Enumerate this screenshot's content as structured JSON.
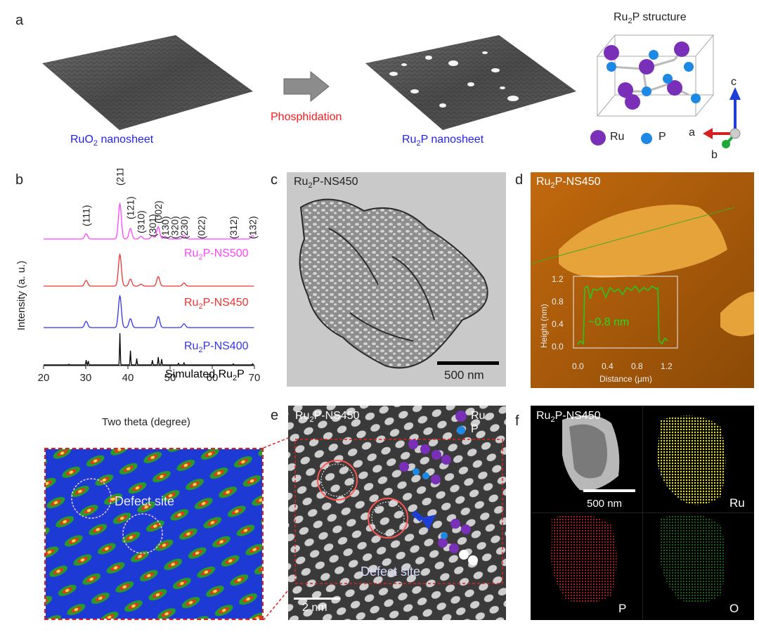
{
  "panels": {
    "a": {
      "letter": "a",
      "left_caption_main": "RuO",
      "left_caption_sub": "2",
      "left_caption_rest": " nanosheet",
      "arrow_label": "Phosphidation",
      "right_caption_main": "Ru",
      "right_caption_sub": "2",
      "right_caption_rest": "P nanosheet",
      "structure_title_main": "Ru",
      "structure_title_sub": "2",
      "structure_title_rest": "P structure",
      "legend_ru": "Ru",
      "legend_p": "P",
      "axis_a": "a",
      "axis_b": "b",
      "axis_c": "c"
    },
    "b": {
      "letter": "b",
      "xlabel": "Two theta (degree)",
      "ylabel": "Intensity (a. u.)",
      "series_ns500_main": "Ru",
      "series_ns500_sub": "2",
      "series_ns500_rest": "P-NS500",
      "series_ns450_main": "Ru",
      "series_ns450_sub": "2",
      "series_ns450_rest": "P-NS450",
      "series_ns400_main": "Ru",
      "series_ns400_sub": "2",
      "series_ns400_rest": "P-NS400",
      "sim_main": "Simulated Ru",
      "sim_sub": "2",
      "sim_rest": "P"
    },
    "c": {
      "letter": "c",
      "tag_main": "Ru",
      "tag_sub": "2",
      "tag_rest": "P-NS450",
      "scalebar": "500 nm"
    },
    "d": {
      "letter": "d",
      "tag_main": "Ru",
      "tag_sub": "2",
      "tag_rest": "P-NS450",
      "inset_xlabel": "Distance (μm)",
      "inset_ylabel": "Height (nm)",
      "inset_annotation": "~0.8 nm",
      "inset_xticks": [
        "0.0",
        "0.4",
        "0.8",
        "1.2"
      ],
      "inset_yticks": [
        "0.0",
        "0.4",
        "0.8",
        "1.2"
      ]
    },
    "e": {
      "letter": "e",
      "tag_main": "Ru",
      "tag_sub": "2",
      "tag_rest": "P-NS450",
      "legend_ru": "Ru",
      "legend_p": "P",
      "defect_label": "Defect site",
      "scalebar": "2 nm",
      "zoom_defect_label": "Defect site"
    },
    "f": {
      "letter": "f",
      "tag_main": "Ru",
      "tag_sub": "2",
      "tag_rest": "P-NS450",
      "scalebar": "500 nm",
      "label_ru": "Ru",
      "label_p": "P",
      "label_o": "O"
    }
  },
  "colors": {
    "ns500": "#ff44ff",
    "ns450": "#ee3333",
    "ns400": "#3333ee",
    "sim": "#000000",
    "ru_atom": "#7a2fb8",
    "p_atom": "#1e88e5",
    "phosphidation": "#ff1a1a",
    "caption_blue": "#2222ee",
    "afm_profile": "#22cc22",
    "defect_red": "#ff5555"
  },
  "chart_data": {
    "type": "line",
    "xlabel": "Two theta (degree)",
    "ylabel": "Intensity (a. u.)",
    "xlim": [
      20,
      70
    ],
    "xticks": [
      20,
      30,
      40,
      50,
      60,
      70
    ],
    "peaks": [
      {
        "label": "(111)",
        "x": 30.1
      },
      {
        "label": "(211)",
        "x": 38.1
      },
      {
        "label": "(121)",
        "x": 40.6
      },
      {
        "label": "(310)",
        "x": 43.1
      },
      {
        "label": "(301)",
        "x": 45.8
      },
      {
        "label": "(002)",
        "x": 47.2
      },
      {
        "label": "(130)",
        "x": 48.8
      },
      {
        "label": "(320)",
        "x": 51.1
      },
      {
        "label": "(230)",
        "x": 53.3
      },
      {
        "label": "(022)",
        "x": 57.4
      },
      {
        "label": "(312)",
        "x": 65.0
      },
      {
        "label": "(132)",
        "x": 69.6
      }
    ],
    "series": [
      {
        "name": "Ru2P-NS500",
        "peaks": [
          [
            30.1,
            0.15
          ],
          [
            38.1,
            1.0
          ],
          [
            40.6,
            0.3
          ],
          [
            43.1,
            0.08
          ],
          [
            45.8,
            0.1
          ],
          [
            47.2,
            0.35
          ],
          [
            48.8,
            0.08
          ],
          [
            53.3,
            0.1
          ],
          [
            69.6,
            0.1
          ]
        ]
      },
      {
        "name": "Ru2P-NS450",
        "peaks": [
          [
            30.1,
            0.18
          ],
          [
            38.1,
            1.0
          ],
          [
            40.6,
            0.22
          ],
          [
            43.1,
            0.06
          ],
          [
            47.2,
            0.3
          ],
          [
            53.3,
            0.1
          ]
        ]
      },
      {
        "name": "Ru2P-NS400",
        "peaks": [
          [
            30.1,
            0.2
          ],
          [
            38.1,
            1.0
          ],
          [
            40.6,
            0.28
          ],
          [
            47.2,
            0.35
          ],
          [
            53.3,
            0.12
          ]
        ]
      },
      {
        "name": "Simulated Ru2P",
        "peaks": [
          [
            26.0,
            0.02
          ],
          [
            30.1,
            0.15
          ],
          [
            30.6,
            0.12
          ],
          [
            38.1,
            1.0
          ],
          [
            40.6,
            0.45
          ],
          [
            42.1,
            0.2
          ],
          [
            45.8,
            0.15
          ],
          [
            47.2,
            0.25
          ],
          [
            48.0,
            0.18
          ],
          [
            52.0,
            0.05
          ],
          [
            53.3,
            0.06
          ],
          [
            65.0,
            0.03
          ],
          [
            69.6,
            0.03
          ]
        ]
      }
    ]
  }
}
